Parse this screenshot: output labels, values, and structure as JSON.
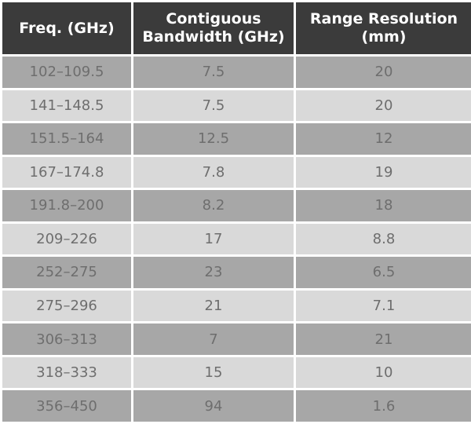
{
  "headers": [
    "Freq. (GHz)",
    "Contiguous Bandwidth (GHz)",
    "Range Resolution (mm)"
  ],
  "rows": [
    [
      "102–109.5",
      "7.5",
      "20"
    ],
    [
      "141–148.5",
      "7.5",
      "20"
    ],
    [
      "151.5–164",
      "12.5",
      "12"
    ],
    [
      "167–174.8",
      "7.8",
      "19"
    ],
    [
      "191.8–200",
      "8.2",
      "18"
    ],
    [
      "209–226",
      "17",
      "8.8"
    ],
    [
      "252–275",
      "23",
      "6.5"
    ],
    [
      "275–296",
      "21",
      "7.1"
    ],
    [
      "306–313",
      "7",
      "21"
    ],
    [
      "318–333",
      "15",
      "10"
    ],
    [
      "356–450",
      "94",
      "1.6"
    ]
  ]
}
